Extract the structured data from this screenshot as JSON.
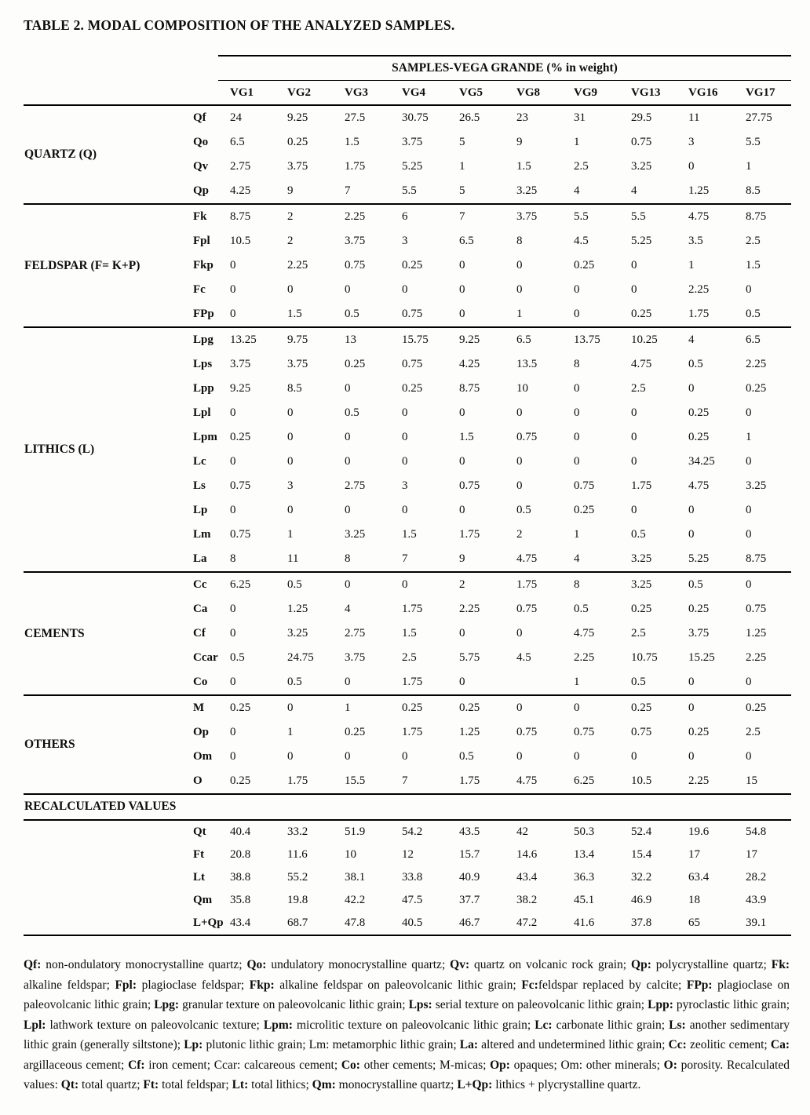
{
  "title": "TABLE 2. MODAL COMPOSITION OF THE ANALYZED SAMPLES.",
  "table": {
    "banner": "SAMPLES-VEGA GRANDE (% in weight)",
    "columns": [
      "VG1",
      "VG2",
      "VG3",
      "VG4",
      "VG5",
      "VG8",
      "VG9",
      "VG13",
      "VG16",
      "VG17"
    ],
    "sections": [
      {
        "group": "QUARTZ (Q)",
        "rows": [
          {
            "abbr": "Qf",
            "values": [
              "24",
              "9.25",
              "27.5",
              "30.75",
              "26.5",
              "23",
              "31",
              "29.5",
              "11",
              "27.75"
            ]
          },
          {
            "abbr": "Qo",
            "values": [
              "6.5",
              "0.25",
              "1.5",
              "3.75",
              "5",
              "9",
              "1",
              "0.75",
              "3",
              "5.5"
            ]
          },
          {
            "abbr": "Qv",
            "values": [
              "2.75",
              "3.75",
              "1.75",
              "5.25",
              "1",
              "1.5",
              "2.5",
              "3.25",
              "0",
              "1"
            ]
          },
          {
            "abbr": "Qp",
            "values": [
              "4.25",
              "9",
              "7",
              "5.5",
              "5",
              "3.25",
              "4",
              "4",
              "1.25",
              "8.5"
            ]
          }
        ]
      },
      {
        "group": "FELDSPAR (F= K+P)",
        "rows": [
          {
            "abbr": "Fk",
            "values": [
              "8.75",
              "2",
              "2.25",
              "6",
              "7",
              "3.75",
              "5.5",
              "5.5",
              "4.75",
              "8.75"
            ]
          },
          {
            "abbr": "Fpl",
            "values": [
              "10.5",
              "2",
              "3.75",
              "3",
              "6.5",
              "8",
              "4.5",
              "5.25",
              "3.5",
              "2.5"
            ]
          },
          {
            "abbr": "Fkp",
            "values": [
              "0",
              "2.25",
              "0.75",
              "0.25",
              "0",
              "0",
              "0.25",
              "0",
              "1",
              "1.5"
            ]
          },
          {
            "abbr": "Fc",
            "values": [
              "0",
              "0",
              "0",
              "0",
              "0",
              "0",
              "0",
              "0",
              "2.25",
              "0"
            ]
          },
          {
            "abbr": "FPp",
            "values": [
              "0",
              "1.5",
              "0.5",
              "0.75",
              "0",
              "1",
              "0",
              "0.25",
              "1.75",
              "0.5"
            ]
          }
        ]
      },
      {
        "group": "LITHICS (L)",
        "rows": [
          {
            "abbr": "Lpg",
            "values": [
              "13.25",
              "9.75",
              "13",
              "15.75",
              "9.25",
              "6.5",
              "13.75",
              "10.25",
              "4",
              "6.5"
            ]
          },
          {
            "abbr": "Lps",
            "values": [
              "3.75",
              "3.75",
              "0.25",
              "0.75",
              "4.25",
              "13.5",
              "8",
              "4.75",
              "0.5",
              "2.25"
            ]
          },
          {
            "abbr": "Lpp",
            "values": [
              "9.25",
              "8.5",
              "0",
              "0.25",
              "8.75",
              "10",
              "0",
              "2.5",
              "0",
              "0.25"
            ]
          },
          {
            "abbr": "Lpl",
            "values": [
              "0",
              "0",
              "0.5",
              "0",
              "0",
              "0",
              "0",
              "0",
              "0.25",
              "0"
            ]
          },
          {
            "abbr": "Lpm",
            "values": [
              "0.25",
              "0",
              "0",
              "0",
              "1.5",
              "0.75",
              "0",
              "0",
              "0.25",
              "1"
            ]
          },
          {
            "abbr": "Lc",
            "values": [
              "0",
              "0",
              "0",
              "0",
              "0",
              "0",
              "0",
              "0",
              "34.25",
              "0"
            ]
          },
          {
            "abbr": "Ls",
            "values": [
              "0.75",
              "3",
              "2.75",
              "3",
              "0.75",
              "0",
              "0.75",
              "1.75",
              "4.75",
              "3.25"
            ]
          },
          {
            "abbr": "Lp",
            "values": [
              "0",
              "0",
              "0",
              "0",
              "0",
              "0.5",
              "0.25",
              "0",
              "0",
              "0"
            ]
          },
          {
            "abbr": "Lm",
            "values": [
              "0.75",
              "1",
              "3.25",
              "1.5",
              "1.75",
              "2",
              "1",
              "0.5",
              "0",
              "0"
            ]
          },
          {
            "abbr": "La",
            "values": [
              "8",
              "11",
              "8",
              "7",
              "9",
              "4.75",
              "4",
              "3.25",
              "5.25",
              "8.75"
            ]
          }
        ]
      },
      {
        "group": "CEMENTS",
        "rows": [
          {
            "abbr": "Cc",
            "values": [
              "6.25",
              "0.5",
              "0",
              "0",
              "2",
              "1.75",
              "8",
              "3.25",
              "0.5",
              "0"
            ]
          },
          {
            "abbr": "Ca",
            "values": [
              "0",
              "1.25",
              "4",
              "1.75",
              "2.25",
              "0.75",
              "0.5",
              "0.25",
              "0.25",
              "0.75"
            ]
          },
          {
            "abbr": "Cf",
            "values": [
              "0",
              "3.25",
              "2.75",
              "1.5",
              "0",
              "0",
              "4.75",
              "2.5",
              "3.75",
              "1.25"
            ]
          },
          {
            "abbr": "Ccar",
            "values": [
              "0.5",
              "24.75",
              "3.75",
              "2.5",
              "5.75",
              "4.5",
              "2.25",
              "10.75",
              "15.25",
              "2.25"
            ]
          },
          {
            "abbr": "Co",
            "values": [
              "0",
              "0.5",
              "0",
              "1.75",
              "0",
              "",
              "1",
              "0.5",
              "0",
              "0"
            ]
          }
        ]
      },
      {
        "group": "OTHERS",
        "rows": [
          {
            "abbr": "M",
            "values": [
              "0.25",
              "0",
              "1",
              "0.25",
              "0.25",
              "0",
              "0",
              "0.25",
              "0",
              "0.25"
            ]
          },
          {
            "abbr": "Op",
            "values": [
              "0",
              "1",
              "0.25",
              "1.75",
              "1.25",
              "0.75",
              "0.75",
              "0.75",
              "0.25",
              "2.5"
            ]
          },
          {
            "abbr": "Om",
            "values": [
              "0",
              "0",
              "0",
              "0",
              "0.5",
              "0",
              "0",
              "0",
              "0",
              "0"
            ]
          },
          {
            "abbr": "O",
            "values": [
              "0.25",
              "1.75",
              "15.5",
              "7",
              "1.75",
              "4.75",
              "6.25",
              "10.5",
              "2.25",
              "15"
            ]
          }
        ]
      }
    ],
    "recalculated_label": "RECALCULATED VALUES",
    "recalculated_rows": [
      {
        "abbr": "Qt",
        "values": [
          "40.4",
          "33.2",
          "51.9",
          "54.2",
          "43.5",
          "42",
          "50.3",
          "52.4",
          "19.6",
          "54.8"
        ]
      },
      {
        "abbr": "Ft",
        "values": [
          "20.8",
          "11.6",
          "10",
          "12",
          "15.7",
          "14.6",
          "13.4",
          "15.4",
          "17",
          "17"
        ]
      },
      {
        "abbr": "Lt",
        "values": [
          "38.8",
          "55.2",
          "38.1",
          "33.8",
          "40.9",
          "43.4",
          "36.3",
          "32.2",
          "63.4",
          "28.2"
        ]
      },
      {
        "abbr": "Qm",
        "values": [
          "35.8",
          "19.8",
          "42.2",
          "47.5",
          "37.7",
          "38.2",
          "45.1",
          "46.9",
          "18",
          "43.9"
        ]
      },
      {
        "abbr": "L+Qp",
        "values": [
          "43.4",
          "68.7",
          "47.8",
          "40.5",
          "46.7",
          "47.2",
          "41.6",
          "37.8",
          "65",
          "39.1"
        ]
      }
    ]
  },
  "footnote_segments": [
    {
      "t": "Qf:",
      "b": true
    },
    {
      "t": " non-ondulatory monocrystalline quartz; ",
      "b": false
    },
    {
      "t": "Qo:",
      "b": true
    },
    {
      "t": " undulatory monocrystalline quartz; ",
      "b": false
    },
    {
      "t": "Qv:",
      "b": true
    },
    {
      "t": " quartz on volcanic rock grain; ",
      "b": false
    },
    {
      "t": "Qp:",
      "b": true
    },
    {
      "t": " polycrystalline quartz; ",
      "b": false
    },
    {
      "t": "Fk:",
      "b": true
    },
    {
      "t": " alkaline feldspar; ",
      "b": false
    },
    {
      "t": "Fpl:",
      "b": true
    },
    {
      "t": " plagioclase feldspar; ",
      "b": false
    },
    {
      "t": "Fkp:",
      "b": true
    },
    {
      "t": " alkaline feldspar on paleovolcanic lithic grain; ",
      "b": false
    },
    {
      "t": "Fc:",
      "b": true
    },
    {
      "t": "feldspar replaced by calcite; ",
      "b": false
    },
    {
      "t": "FPp:",
      "b": true
    },
    {
      "t": " plagioclase on paleovolcanic lithic grain; ",
      "b": false
    },
    {
      "t": "Lpg:",
      "b": true
    },
    {
      "t": " granular texture on paleovolcanic lithic grain; ",
      "b": false
    },
    {
      "t": "Lps:",
      "b": true
    },
    {
      "t": " serial texture on paleovolcanic lithic grain; ",
      "b": false
    },
    {
      "t": "Lpp:",
      "b": true
    },
    {
      "t": " pyroclastic lithic grain; ",
      "b": false
    },
    {
      "t": "Lpl:",
      "b": true
    },
    {
      "t": " lathwork texture on paleovolcanic texture; ",
      "b": false
    },
    {
      "t": "Lpm:",
      "b": true
    },
    {
      "t": " microlitic texture on paleovolcanic lithic grain; ",
      "b": false
    },
    {
      "t": "Lc:",
      "b": true
    },
    {
      "t": " carbonate lithic grain; ",
      "b": false
    },
    {
      "t": "Ls:",
      "b": true
    },
    {
      "t": " another sedimentary lithic grain (generally siltstone); ",
      "b": false
    },
    {
      "t": "Lp:",
      "b": true
    },
    {
      "t": " plutonic lithic grain; Lm: metamorphic lithic grain; ",
      "b": false
    },
    {
      "t": "La:",
      "b": true
    },
    {
      "t": " altered and undetermined lithic grain; ",
      "b": false
    },
    {
      "t": "Cc:",
      "b": true
    },
    {
      "t": " zeolitic cement; ",
      "b": false
    },
    {
      "t": "Ca:",
      "b": true
    },
    {
      "t": " argillaceous cement; ",
      "b": false
    },
    {
      "t": "Cf:",
      "b": true
    },
    {
      "t": " iron cement; Ccar: calcareous cement; ",
      "b": false
    },
    {
      "t": "Co:",
      "b": true
    },
    {
      "t": " other cements; M-micas; ",
      "b": false
    },
    {
      "t": "Op:",
      "b": true
    },
    {
      "t": " opaques; Om: other minerals; ",
      "b": false
    },
    {
      "t": "O:",
      "b": true
    },
    {
      "t": " porosity. Recalculated values: ",
      "b": false
    },
    {
      "t": "Qt:",
      "b": true
    },
    {
      "t": " total quartz; ",
      "b": false
    },
    {
      "t": "Ft:",
      "b": true
    },
    {
      "t": " total feldspar; ",
      "b": false
    },
    {
      "t": "Lt:",
      "b": true
    },
    {
      "t": " total lithics; ",
      "b": false
    },
    {
      "t": "Qm:",
      "b": true
    },
    {
      "t": " monocrystalline quartz; ",
      "b": false
    },
    {
      "t": "L+Qp:",
      "b": true
    },
    {
      "t": " lithics + plycrystalline quartz.",
      "b": false
    }
  ]
}
